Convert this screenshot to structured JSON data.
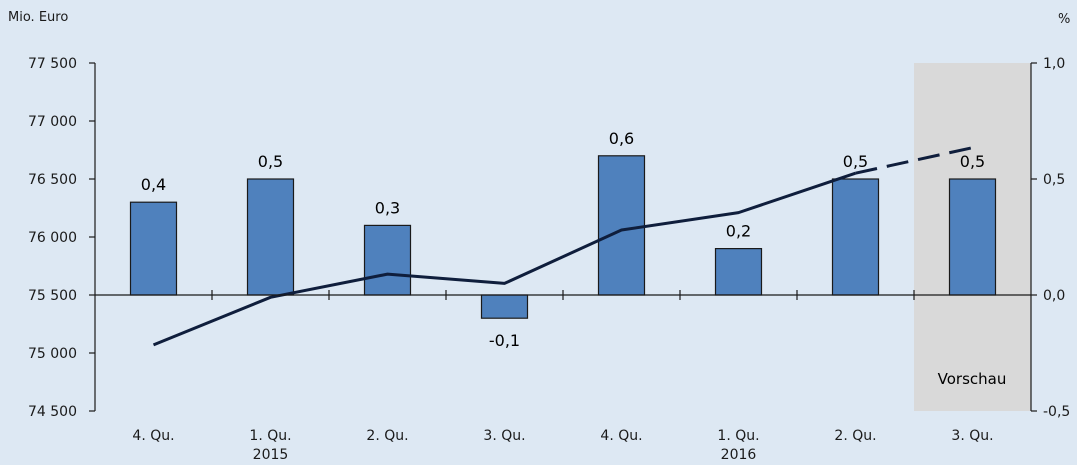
{
  "chart_data": {
    "type": "bar",
    "title": "",
    "left_axis": {
      "unit": "Mio. Euro",
      "ylim": [
        74500,
        77500
      ],
      "ticks": [
        74500,
        75000,
        75500,
        76000,
        76500,
        77000,
        77500
      ],
      "tick_labels": [
        "74 500",
        "75 000",
        "75 500",
        "76 000",
        "76 500",
        "77 000",
        "77 500"
      ]
    },
    "right_axis": {
      "unit": "%",
      "ylim": [
        -0.5,
        1.0
      ],
      "ticks": [
        -0.5,
        0.0,
        0.5,
        1.0
      ],
      "tick_labels": [
        "-0,5",
        "0,0",
        "0,5",
        "1,0"
      ]
    },
    "categories": [
      "4. Qu.",
      "1. Qu.",
      "2. Qu.",
      "3. Qu.",
      "4. Qu.",
      "1. Qu.",
      "2. Qu.",
      "3. Qu."
    ],
    "year_labels": [
      "",
      "2015",
      "",
      "",
      "",
      "2016",
      "",
      ""
    ],
    "series": [
      {
        "axis": "right",
        "kind": "bar",
        "values": [
          0.4,
          0.5,
          0.3,
          -0.1,
          0.6,
          0.2,
          0.5,
          0.5
        ],
        "value_labels": [
          "0,4",
          "0,5",
          "0,3",
          "-0,1",
          "0,6",
          "0,2",
          "0,5",
          "0,5"
        ]
      },
      {
        "axis": "left",
        "kind": "line",
        "values": [
          75070,
          75480,
          75680,
          75600,
          76060,
          76210,
          76550,
          76770
        ],
        "forecast_from_index": 6
      }
    ],
    "forecast_label": "Vorschau",
    "forecast_shaded_index": 7,
    "colors": {
      "background": "#dde8f3",
      "bar_fill": "#4f81bd",
      "bar_stroke": "#1a1a1a",
      "line": "#0f1e3c",
      "forecast_band": "#d9d9d9",
      "frame": "#1a1a1a"
    },
    "grid": false
  }
}
